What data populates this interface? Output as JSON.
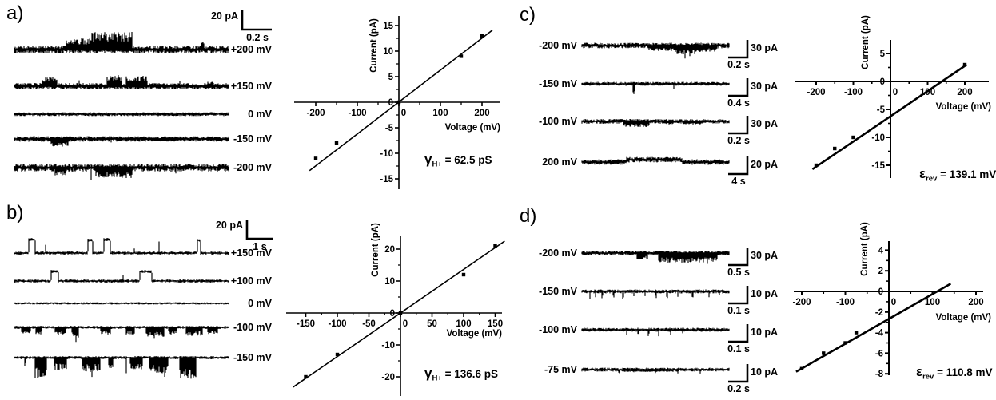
{
  "panels": [
    {
      "id": "a",
      "letter": "a)",
      "scalebar": {
        "current": "20 pA",
        "time": "0.2 s"
      },
      "traces": [
        {
          "label": "+200 mV"
        },
        {
          "label": "+150 mV"
        },
        {
          "label": "0 mV"
        },
        {
          "label": "-150 mV"
        },
        {
          "label": "-200 mV"
        }
      ]
    },
    {
      "id": "b",
      "letter": "b)",
      "scalebar": {
        "current": "20 pA",
        "time": "1 s"
      },
      "traces": [
        {
          "label": "+150 mV"
        },
        {
          "label": "+100 mV"
        },
        {
          "label": "0 mV"
        },
        {
          "label": "-100 mV"
        },
        {
          "label": "-150 mV"
        }
      ]
    },
    {
      "id": "c",
      "letter": "c)",
      "traces": [
        {
          "label": "-200 mV",
          "scalebar": {
            "current": "30 pA",
            "time": "0.2 s"
          }
        },
        {
          "label": "-150 mV",
          "scalebar": {
            "current": "30 pA",
            "time": "0.4 s"
          }
        },
        {
          "label": "-100 mV",
          "scalebar": {
            "current": "30 pA",
            "time": "0.2 s"
          }
        },
        {
          "label": "200 mV",
          "scalebar": {
            "current": "20 pA",
            "time": "4 s"
          }
        }
      ]
    },
    {
      "id": "d",
      "letter": "d)",
      "traces": [
        {
          "label": "-200 mV",
          "scalebar": {
            "current": "30 pA",
            "time": "0.5 s"
          }
        },
        {
          "label": "-150 mV",
          "scalebar": {
            "current": "10 pA",
            "time": "0.1 s"
          }
        },
        {
          "label": "-100 mV",
          "scalebar": {
            "current": "10 pA",
            "time": "0.1 s"
          }
        },
        {
          "label": "-75 mV",
          "scalebar": {
            "current": "10 pA",
            "time": "0.2 s"
          }
        }
      ]
    }
  ],
  "chart_data": [
    {
      "id": "iv-plot-a",
      "type": "scatter",
      "xlabel": "Voltage (mV)",
      "ylabel": "Current (pA)",
      "xlim": [
        -250,
        250
      ],
      "ylim": [
        -17,
        17
      ],
      "xticks": [
        -200,
        -100,
        0,
        100,
        200
      ],
      "yticks": [
        -15,
        -10,
        -5,
        0,
        5,
        10,
        15
      ],
      "x_minor_step": 50,
      "y_minor_step": 2.5,
      "points": [
        [
          -200,
          -11
        ],
        [
          -150,
          -8
        ],
        [
          0,
          0
        ],
        [
          150,
          9
        ],
        [
          200,
          13
        ]
      ],
      "fit_line": {
        "x1": -215,
        "y1": -13.4,
        "x2": 225,
        "y2": 14.1
      },
      "annotation": {
        "symbol": "γ",
        "sub": "H+",
        "rest": " = 62.5 pS"
      }
    },
    {
      "id": "iv-plot-b",
      "type": "scatter",
      "xlabel": "Voltage (mV)",
      "ylabel": "Current (pA)",
      "xlim": [
        -180,
        180
      ],
      "ylim": [
        -26,
        26
      ],
      "xticks": [
        -150,
        -100,
        -50,
        0,
        50,
        100,
        150
      ],
      "yticks": [
        -20,
        -10,
        0,
        10,
        20
      ],
      "x_minor_step": 25,
      "y_minor_step": 5,
      "points": [
        [
          -150,
          -20
        ],
        [
          -100,
          -13
        ],
        [
          0,
          0
        ],
        [
          100,
          12
        ],
        [
          150,
          21
        ]
      ],
      "fit_line": {
        "x1": -170,
        "y1": -23.2,
        "x2": 165,
        "y2": 22.5
      },
      "annotation": {
        "symbol": "γ",
        "sub": "H+",
        "rest": " = 136.6 pS"
      }
    },
    {
      "id": "iv-plot-c",
      "type": "scatter",
      "xlabel": "Voltage (mV)",
      "ylabel": "Current (pA)",
      "xlim": [
        -260,
        260
      ],
      "ylim": [
        -17,
        7
      ],
      "xticks": [
        -200,
        -100,
        0,
        100,
        200
      ],
      "yticks": [
        -15,
        -10,
        -5,
        0,
        5
      ],
      "x_minor_step": 50,
      "y_minor_step": 2.5,
      "points": [
        [
          -200,
          -15
        ],
        [
          -150,
          -12
        ],
        [
          -100,
          -10
        ],
        [
          200,
          3
        ]
      ],
      "fit_line": {
        "x1": -210,
        "y1": -15.7,
        "x2": 205,
        "y2": 3.0
      },
      "annotation": {
        "symbol": "ε",
        "sub": "rev",
        "rest": " = 139.1 mV"
      }
    },
    {
      "id": "iv-plot-d",
      "type": "scatter",
      "xlabel": "Voltage (mV)",
      "ylabel": "Current (pA)",
      "xlim": [
        -220,
        220
      ],
      "ylim": [
        -8.5,
        5
      ],
      "xticks": [
        -200,
        -100,
        0,
        100,
        200
      ],
      "yticks": [
        -8,
        -6,
        -4,
        -2,
        0,
        2,
        4
      ],
      "x_minor_step": 50,
      "y_minor_step": 1,
      "points": [
        [
          -200,
          -7.5
        ],
        [
          -150,
          -6
        ],
        [
          -100,
          -5
        ],
        [
          -75,
          -4
        ]
      ],
      "fit_line": {
        "x1": -213,
        "y1": -7.8,
        "x2": 142,
        "y2": 0.75
      },
      "annotation": {
        "symbol": "ε",
        "sub": "rev",
        "rest": " = 110.8 mV"
      }
    }
  ],
  "colors": {
    "ink": "#000000",
    "background": "#ffffff"
  }
}
